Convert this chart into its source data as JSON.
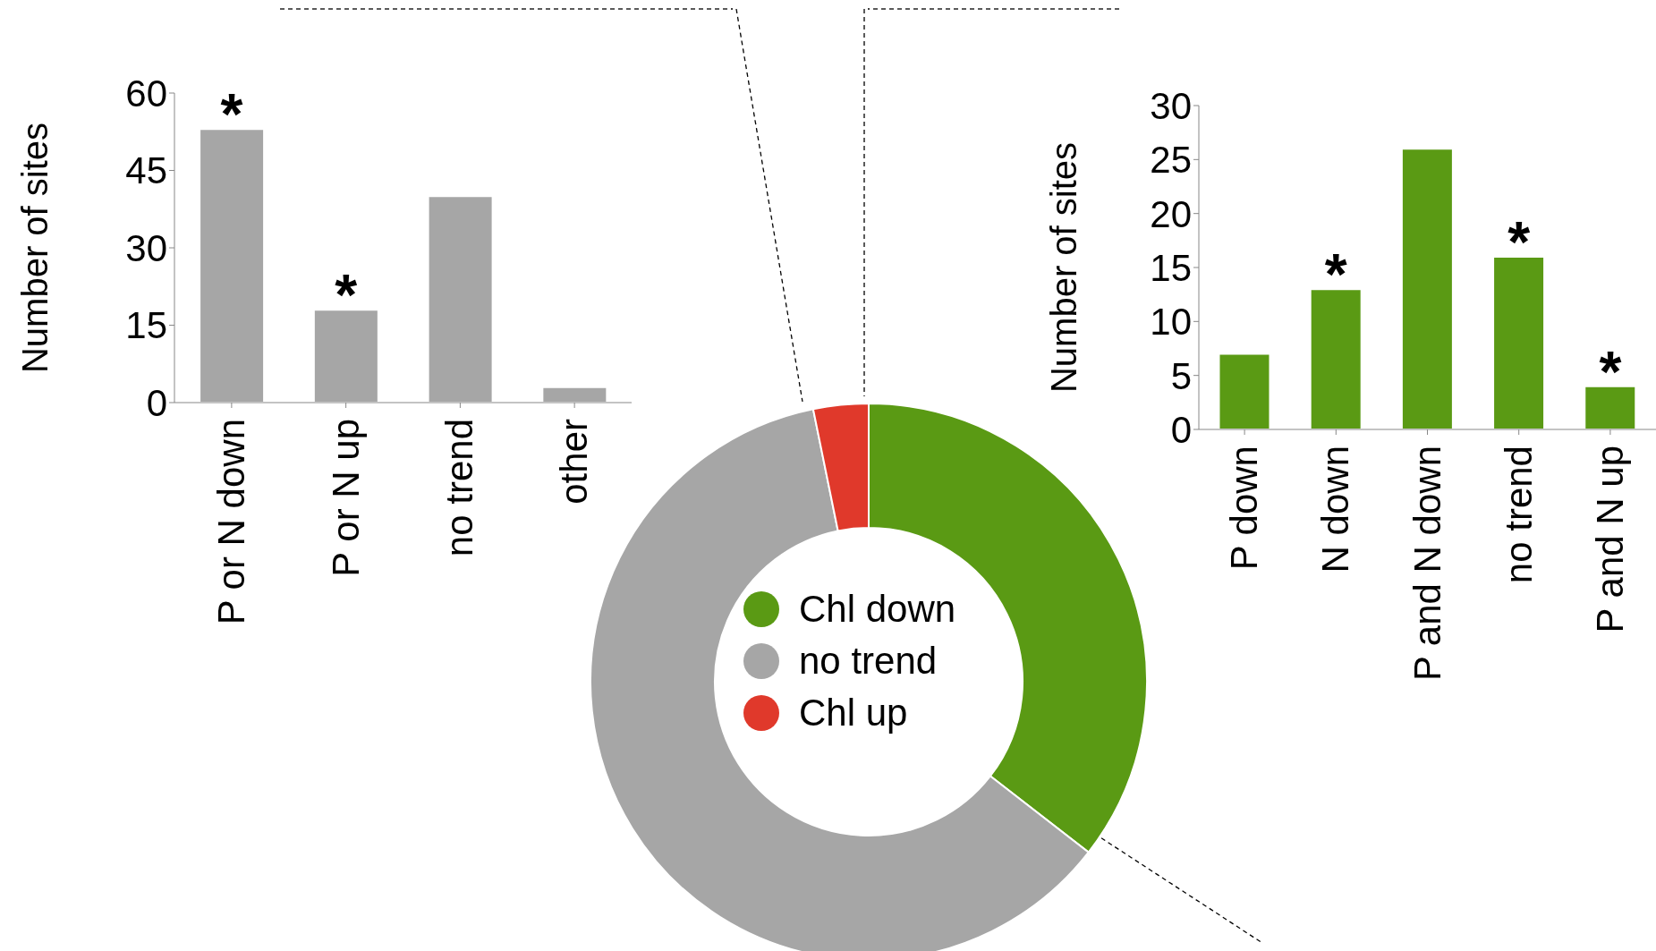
{
  "chart_data": [
    {
      "type": "bar",
      "ylabel": "Number of sites",
      "categories": [
        "P or N down",
        "P or N up",
        "no trend",
        "other"
      ],
      "values": [
        53,
        18,
        40,
        3
      ],
      "color": "#a6a6a6",
      "ylim": [
        0,
        60
      ],
      "yticks": [
        0,
        15,
        30,
        45,
        60
      ],
      "grid": false,
      "annotations": [
        {
          "text": "*",
          "x": "P or N down",
          "y": 53
        },
        {
          "text": "*",
          "x": "P or N up",
          "y": 18
        }
      ]
    },
    {
      "type": "donut",
      "categories": [
        "Chl down",
        "no trend",
        "Chl up"
      ],
      "values": [
        35.5,
        61.3,
        3.2
      ],
      "colors": [
        "#5a9a14",
        "#a6a6a6",
        "#e0392b"
      ],
      "legend": "center"
    },
    {
      "type": "bar",
      "ylabel": "Number of sites",
      "categories": [
        "P down",
        "N down",
        "P and N down",
        "no trend",
        "P and N up"
      ],
      "values": [
        7,
        13,
        26,
        16,
        4
      ],
      "color": "#5a9a14",
      "ylim": [
        0,
        30
      ],
      "yticks": [
        0,
        5,
        10,
        15,
        20,
        25,
        30
      ],
      "grid": false,
      "annotations": [
        {
          "text": "*",
          "x": "N down",
          "y": 13
        },
        {
          "text": "*",
          "x": "no trend",
          "y": 16
        },
        {
          "text": "*",
          "x": "P and N up",
          "y": 4
        }
      ]
    }
  ]
}
